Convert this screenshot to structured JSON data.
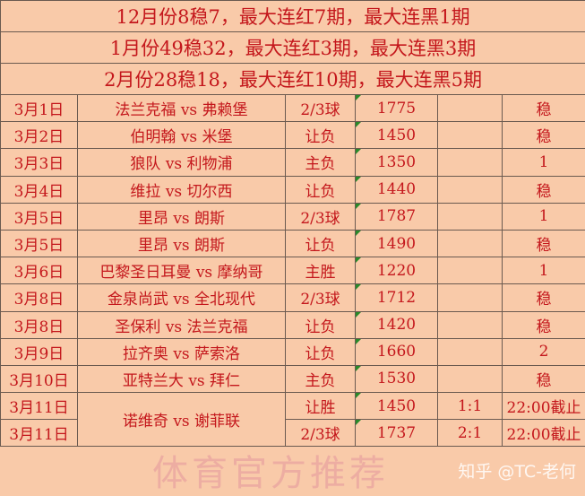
{
  "summary": [
    "12月份8稳7，最大连红7期，最大连黑1期",
    "1月份49稳32，最大连红3期，最大连黑3期",
    "2月份28稳18，最大连红10期，最大连黑5期"
  ],
  "rows": [
    {
      "date": "3月1日",
      "match": "法兰克福 vs 弗赖堡",
      "type": "2/3球",
      "num": "1775",
      "score": "",
      "result": "稳"
    },
    {
      "date": "3月2日",
      "match": "伯明翰 vs 米堡",
      "type": "让负",
      "num": "1450",
      "score": "",
      "result": "稳"
    },
    {
      "date": "3月3日",
      "match": "狼队 vs 利物浦",
      "type": "主负",
      "num": "1350",
      "score": "",
      "result": "1"
    },
    {
      "date": "3月4日",
      "match": "维拉 vs 切尔西",
      "type": "让负",
      "num": "1440",
      "score": "",
      "result": "稳"
    },
    {
      "date": "3月5日",
      "match": "里昂 vs 朗斯",
      "type": "2/3球",
      "num": "1787",
      "score": "",
      "result": "1"
    },
    {
      "date": "3月5日",
      "match": "里昂 vs 朗斯",
      "type": "让负",
      "num": "1490",
      "score": "",
      "result": "稳"
    },
    {
      "date": "3月6日",
      "match": "巴黎圣日耳曼 vs 摩纳哥",
      "type": "主胜",
      "num": "1220",
      "score": "",
      "result": "1"
    },
    {
      "date": "3月8日",
      "match": "金泉尚武 vs 全北现代",
      "type": "2/3球",
      "num": "1712",
      "score": "",
      "result": "稳"
    },
    {
      "date": "3月8日",
      "match": "圣保利 vs 法兰克福",
      "type": "让负",
      "num": "1420",
      "score": "",
      "result": "稳"
    },
    {
      "date": "3月9日",
      "match": "拉齐奥 vs 萨索洛",
      "type": "让负",
      "num": "1660",
      "score": "",
      "result": "2"
    },
    {
      "date": "3月10日",
      "match": "亚特兰大 vs 拜仁",
      "type": "主负",
      "num": "1530",
      "score": "",
      "result": "稳"
    }
  ],
  "last": {
    "match": "诺维奇 vs 谢菲联",
    "rows": [
      {
        "date": "3月11日",
        "type": "让胜",
        "num": "1450",
        "score": "1:1",
        "result": "22:00截止"
      },
      {
        "date": "3月11日",
        "type": "2/3球",
        "num": "1737",
        "score": "2:1",
        "result": "22:00截止"
      }
    ]
  },
  "watermarks": {
    "center": "体育官方推荐",
    "corner": "知乎 @TC-老何"
  }
}
